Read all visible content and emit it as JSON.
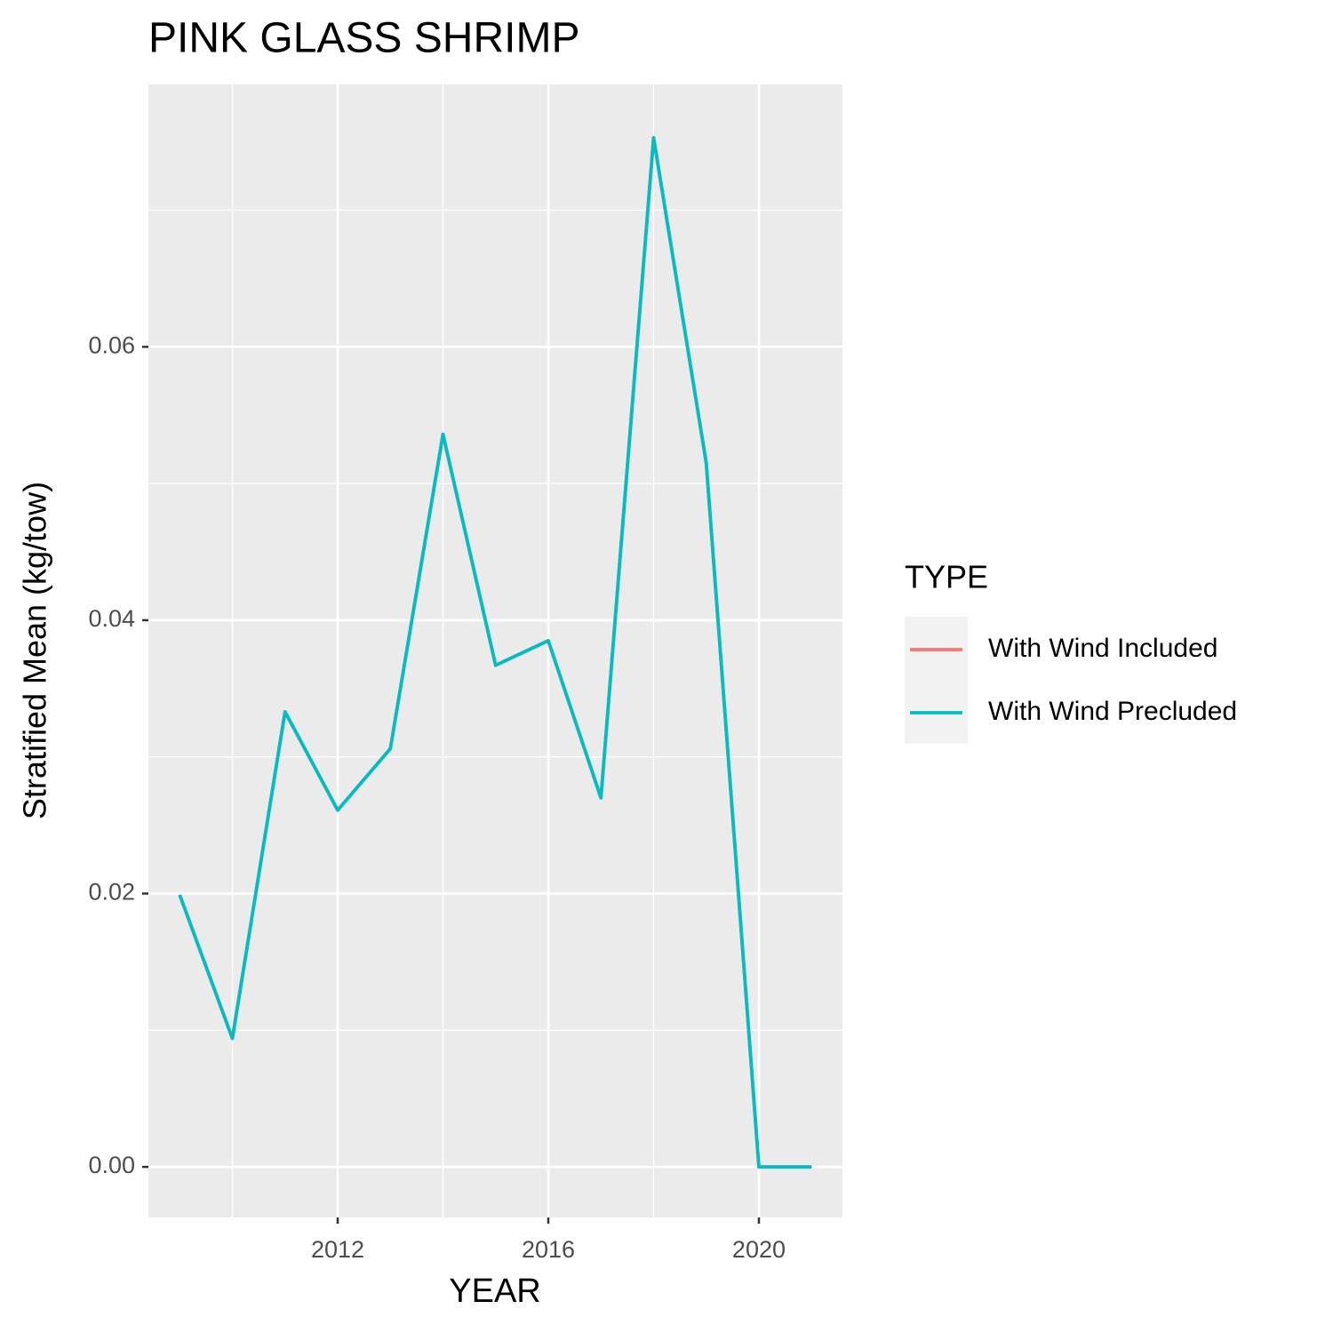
{
  "chart_data": {
    "type": "line",
    "title": "PINK GLASS SHRIMP",
    "x_label": "YEAR",
    "y_label": "Stratified Mean (kg/tow)",
    "x": [
      2009,
      2010,
      2011,
      2012,
      2013,
      2014,
      2015,
      2016,
      2017,
      2018,
      2019,
      2020,
      2021
    ],
    "series": [
      {
        "name": "With Wind Included",
        "color": "#f8766d",
        "values": [
          0.0199,
          0.0094,
          0.0333,
          0.0261,
          0.0306,
          0.0536,
          0.0367,
          0.0385,
          0.027,
          0.0753,
          0.0515,
          0,
          0
        ]
      },
      {
        "name": "With Wind Precluded",
        "color": "#00bfc4",
        "values": [
          0.0199,
          0.0094,
          0.0333,
          0.0261,
          0.0306,
          0.0536,
          0.0367,
          0.0385,
          0.027,
          0.0753,
          0.0515,
          0,
          0
        ]
      }
    ],
    "legend_title": "TYPE",
    "xlim": [
      2008.405,
      2021.587
    ],
    "xticks": [
      2012,
      2016,
      2020
    ],
    "x_minor_ticks": [
      2010,
      2014,
      2018
    ],
    "ylim": [
      -0.0037,
      0.0792
    ],
    "yticks": [
      {
        "value": 0,
        "label": "0.00"
      },
      0.02,
      0.04,
      0.06
    ],
    "y_minor_ticks": [
      0.01,
      0.03,
      0.05,
      0.07
    ],
    "grid": true,
    "legend_position": "right"
  }
}
